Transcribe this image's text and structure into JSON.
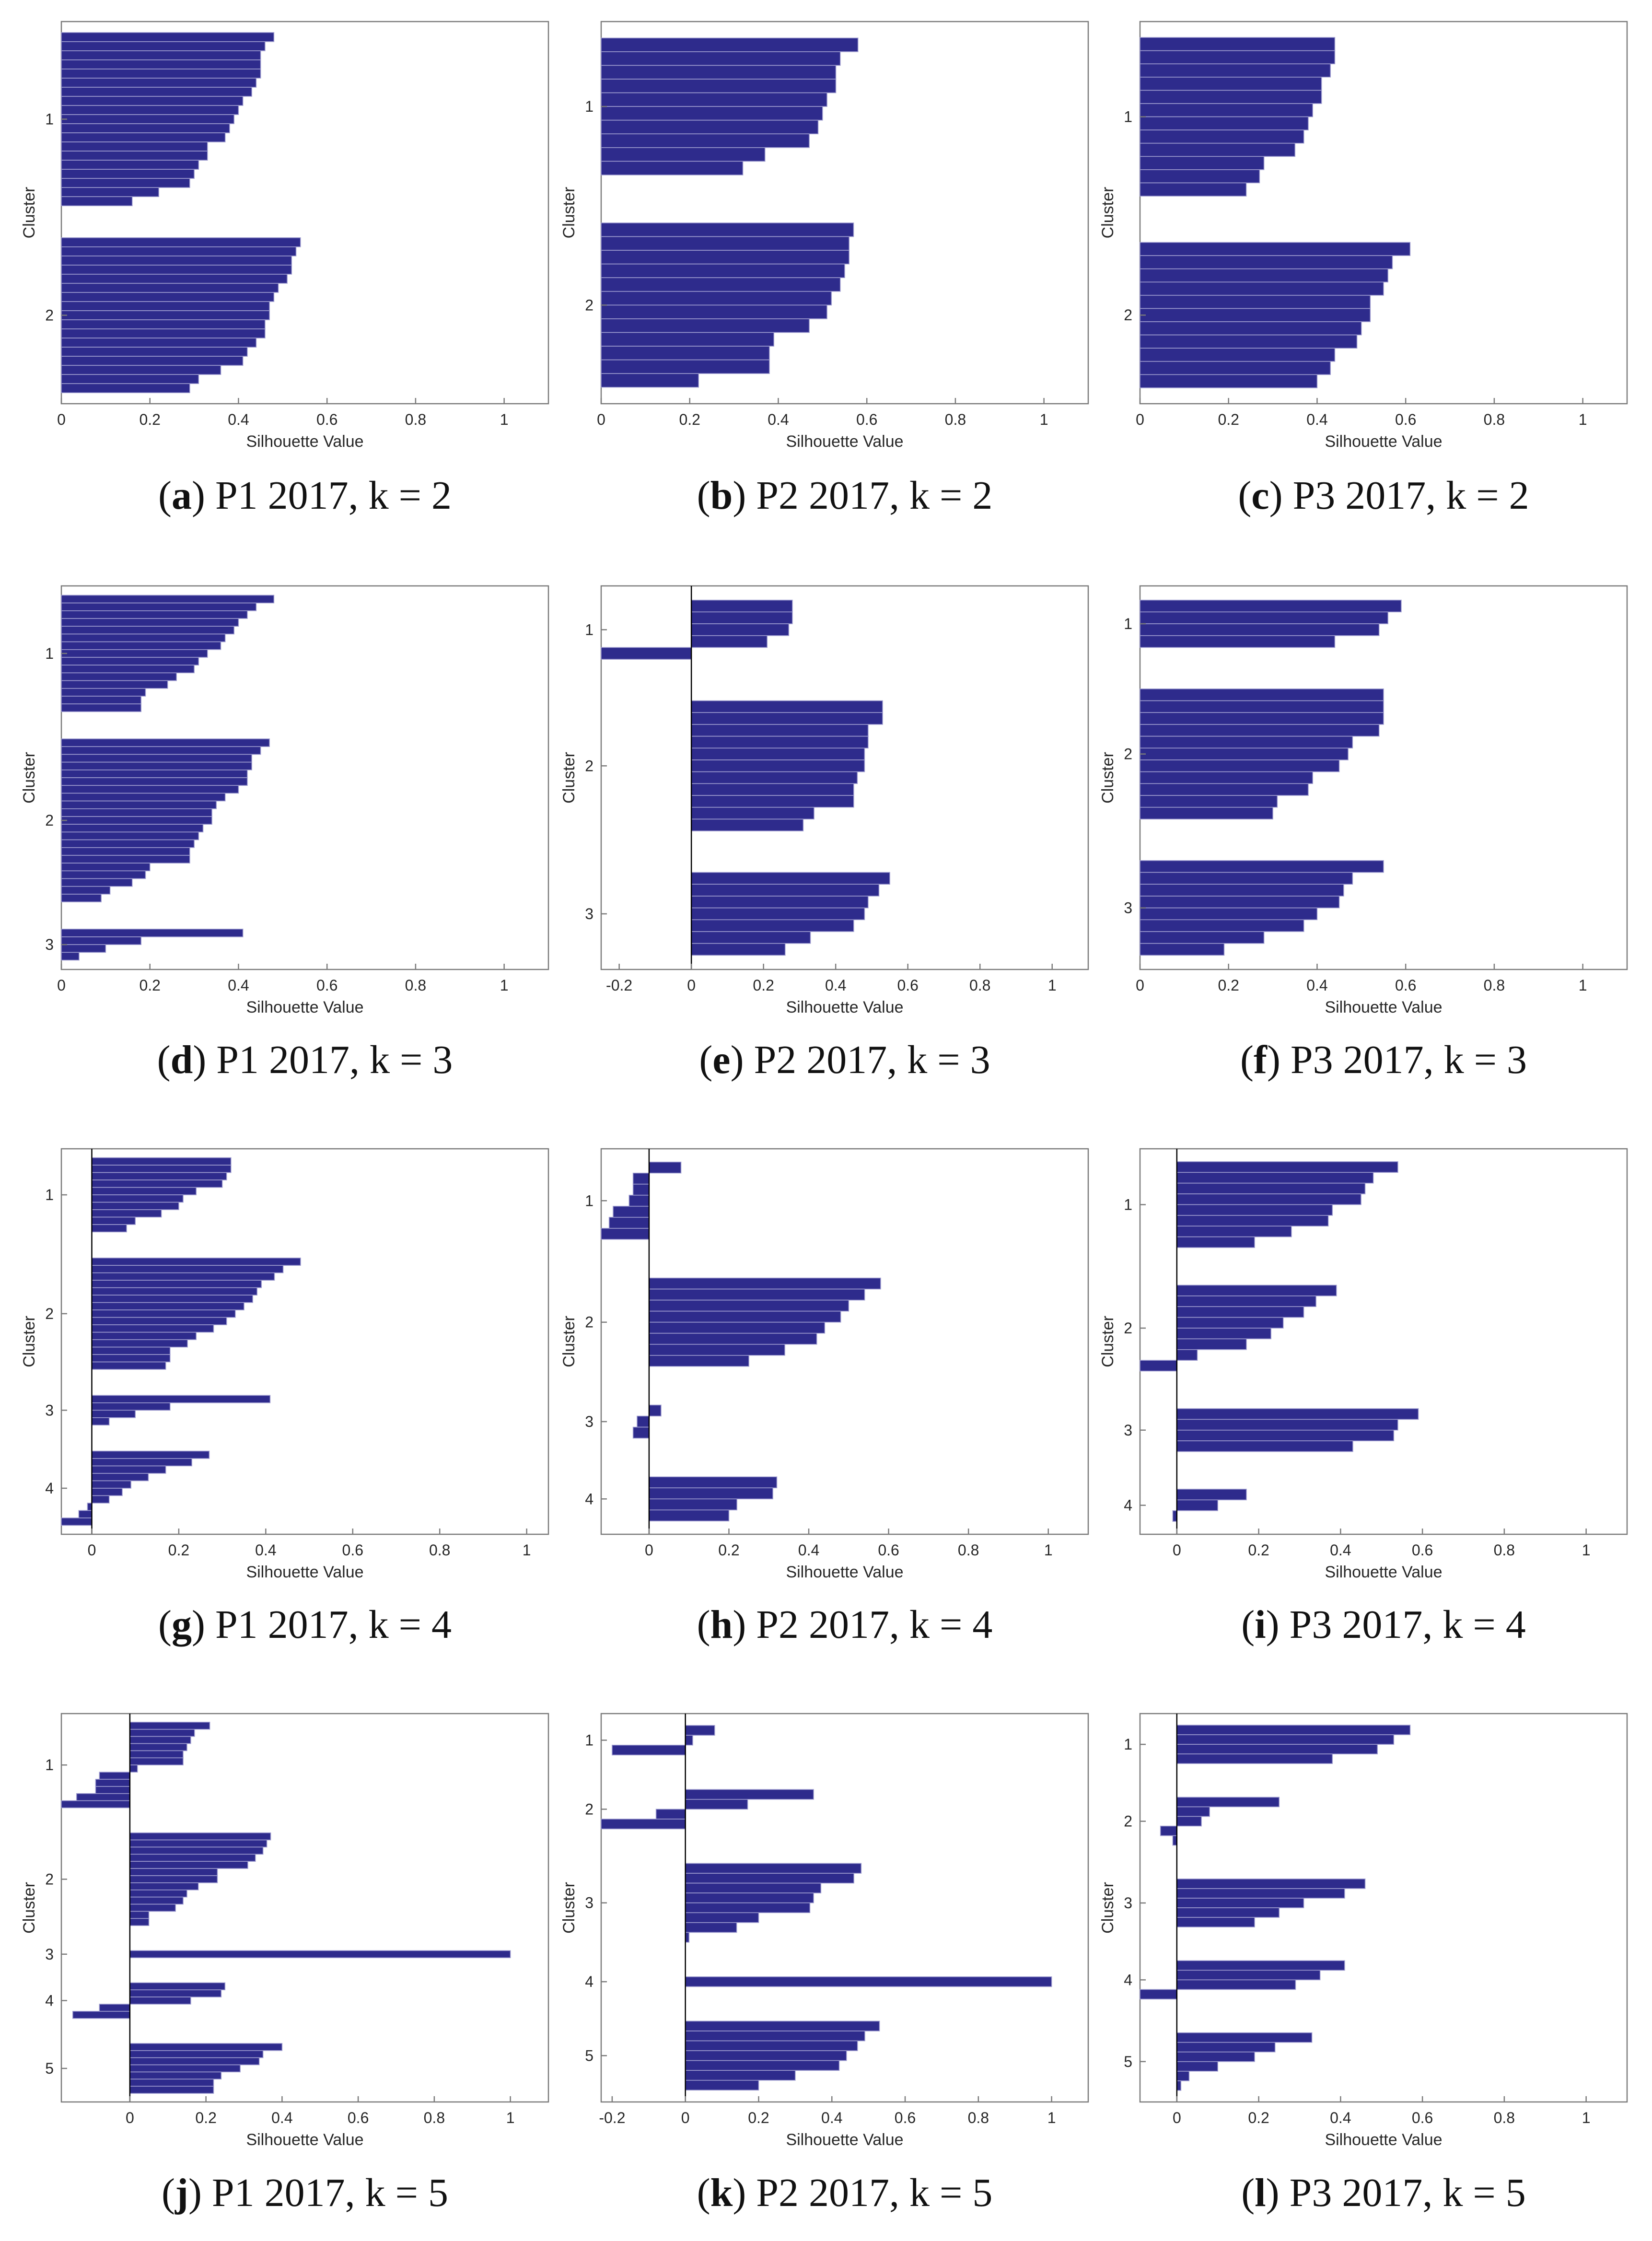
{
  "colors": {
    "bar": "#2e2b8c",
    "axis": "#7a7a7a",
    "tick_text": "#262626",
    "zero_line": "#000000"
  },
  "panel_common": {
    "xlabel": "Silhouette Value",
    "ylabel": "Cluster"
  },
  "chart_data": [
    {
      "id": "a",
      "panel_label": "a",
      "caption": "P1 2017, k = 2",
      "type": "bar",
      "orientation": "horizontal",
      "xlabel": "Silhouette Value",
      "ylabel": "Cluster",
      "xlim": [
        0,
        1.1
      ],
      "xticks": [
        0,
        0.2,
        0.4,
        0.6,
        0.8,
        1
      ],
      "xtick_labels": [
        "0",
        "0.2",
        "0.4",
        "0.6",
        "0.8",
        "1"
      ],
      "clusters": [
        {
          "label": "1",
          "values": [
            0.48,
            0.46,
            0.45,
            0.45,
            0.45,
            0.44,
            0.43,
            0.41,
            0.4,
            0.39,
            0.38,
            0.37,
            0.33,
            0.33,
            0.31,
            0.3,
            0.29,
            0.22,
            0.16
          ]
        },
        {
          "label": "2",
          "values": [
            0.54,
            0.53,
            0.52,
            0.52,
            0.51,
            0.49,
            0.48,
            0.47,
            0.47,
            0.46,
            0.46,
            0.44,
            0.42,
            0.41,
            0.36,
            0.31,
            0.29
          ]
        }
      ]
    },
    {
      "id": "b",
      "panel_label": "b",
      "caption": "P2 2017, k = 2",
      "type": "bar",
      "orientation": "horizontal",
      "xlabel": "Silhouette Value",
      "ylabel": "Cluster",
      "xlim": [
        0,
        1.1
      ],
      "xticks": [
        0,
        0.2,
        0.4,
        0.6,
        0.8,
        1
      ],
      "xtick_labels": [
        "0",
        "0.2",
        "0.4",
        "0.6",
        "0.8",
        "1"
      ],
      "clusters": [
        {
          "label": "1",
          "values": [
            0.58,
            0.54,
            0.53,
            0.53,
            0.51,
            0.5,
            0.49,
            0.47,
            0.37,
            0.32
          ]
        },
        {
          "label": "2",
          "values": [
            0.57,
            0.56,
            0.56,
            0.55,
            0.54,
            0.52,
            0.51,
            0.47,
            0.39,
            0.38,
            0.38,
            0.22
          ]
        }
      ]
    },
    {
      "id": "c",
      "panel_label": "c",
      "caption": "P3 2017, k = 2",
      "type": "bar",
      "orientation": "horizontal",
      "xlabel": "Silhouette Value",
      "ylabel": "Cluster",
      "xlim": [
        0,
        1.1
      ],
      "xticks": [
        0,
        0.2,
        0.4,
        0.6,
        0.8,
        1
      ],
      "xtick_labels": [
        "0",
        "0.2",
        "0.4",
        "0.6",
        "0.8",
        "1"
      ],
      "clusters": [
        {
          "label": "1",
          "values": [
            0.44,
            0.44,
            0.43,
            0.41,
            0.41,
            0.39,
            0.38,
            0.37,
            0.35,
            0.28,
            0.27,
            0.24
          ]
        },
        {
          "label": "2",
          "values": [
            0.61,
            0.57,
            0.56,
            0.55,
            0.52,
            0.52,
            0.5,
            0.49,
            0.44,
            0.43,
            0.4
          ]
        }
      ]
    },
    {
      "id": "d",
      "panel_label": "d",
      "caption": "P1 2017, k = 3",
      "type": "bar",
      "orientation": "horizontal",
      "xlabel": "Silhouette Value",
      "ylabel": "Cluster",
      "xlim": [
        0,
        1.1
      ],
      "xticks": [
        0,
        0.2,
        0.4,
        0.6,
        0.8,
        1
      ],
      "xtick_labels": [
        "0",
        "0.2",
        "0.4",
        "0.6",
        "0.8",
        "1"
      ],
      "clusters": [
        {
          "label": "1",
          "values": [
            0.48,
            0.44,
            0.42,
            0.4,
            0.39,
            0.37,
            0.36,
            0.33,
            0.31,
            0.3,
            0.26,
            0.24,
            0.19,
            0.18,
            0.18
          ]
        },
        {
          "label": "2",
          "values": [
            0.47,
            0.45,
            0.43,
            0.43,
            0.42,
            0.42,
            0.4,
            0.37,
            0.35,
            0.34,
            0.34,
            0.32,
            0.31,
            0.3,
            0.29,
            0.29,
            0.2,
            0.19,
            0.16,
            0.11,
            0.09
          ]
        },
        {
          "label": "3",
          "values": [
            0.41,
            0.18,
            0.1,
            0.04
          ]
        }
      ]
    },
    {
      "id": "e",
      "panel_label": "e",
      "caption": "P2 2017, k = 3",
      "type": "bar",
      "orientation": "horizontal",
      "xlabel": "Silhouette Value",
      "ylabel": "Cluster",
      "xlim": [
        -0.25,
        1.1
      ],
      "xticks": [
        -0.2,
        0,
        0.2,
        0.4,
        0.6,
        0.8,
        1
      ],
      "xtick_labels": [
        "-0.2",
        "0",
        "0.2",
        "0.4",
        "0.6",
        "0.8",
        "1"
      ],
      "clusters": [
        {
          "label": "1",
          "values": [
            0.28,
            0.28,
            0.27,
            0.21,
            -0.25
          ]
        },
        {
          "label": "2",
          "values": [
            0.53,
            0.53,
            0.49,
            0.49,
            0.48,
            0.48,
            0.46,
            0.45,
            0.45,
            0.34,
            0.31
          ]
        },
        {
          "label": "3",
          "values": [
            0.55,
            0.52,
            0.49,
            0.48,
            0.45,
            0.33,
            0.26
          ]
        }
      ]
    },
    {
      "id": "f",
      "panel_label": "f",
      "caption": "P3 2017, k = 3",
      "type": "bar",
      "orientation": "horizontal",
      "xlabel": "Silhouette Value",
      "ylabel": "Cluster",
      "xlim": [
        0,
        1.1
      ],
      "xticks": [
        0,
        0.2,
        0.4,
        0.6,
        0.8,
        1
      ],
      "xtick_labels": [
        "0",
        "0.2",
        "0.4",
        "0.6",
        "0.8",
        "1"
      ],
      "clusters": [
        {
          "label": "1",
          "values": [
            0.59,
            0.56,
            0.54,
            0.44
          ]
        },
        {
          "label": "2",
          "values": [
            0.55,
            0.55,
            0.55,
            0.54,
            0.48,
            0.47,
            0.45,
            0.39,
            0.38,
            0.31,
            0.3
          ]
        },
        {
          "label": "3",
          "values": [
            0.55,
            0.48,
            0.46,
            0.45,
            0.4,
            0.37,
            0.28,
            0.19
          ]
        }
      ]
    },
    {
      "id": "g",
      "panel_label": "g",
      "caption": "P1 2017, k = 4",
      "type": "bar",
      "orientation": "horizontal",
      "xlabel": "Silhouette Value",
      "ylabel": "Cluster",
      "xlim": [
        -0.07,
        1.05
      ],
      "xticks": [
        0,
        0.2,
        0.4,
        0.6,
        0.8,
        1
      ],
      "xtick_labels": [
        "0",
        "0.2",
        "0.4",
        "0.6",
        "0.8",
        "1"
      ],
      "clusters": [
        {
          "label": "1",
          "values": [
            0.32,
            0.32,
            0.31,
            0.3,
            0.24,
            0.21,
            0.2,
            0.16,
            0.1,
            0.08
          ]
        },
        {
          "label": "2",
          "values": [
            0.48,
            0.44,
            0.42,
            0.39,
            0.38,
            0.37,
            0.35,
            0.33,
            0.31,
            0.28,
            0.24,
            0.22,
            0.18,
            0.18,
            0.17
          ]
        },
        {
          "label": "3",
          "values": [
            0.41,
            0.18,
            0.1,
            0.04
          ]
        },
        {
          "label": "4",
          "values": [
            0.27,
            0.23,
            0.17,
            0.13,
            0.09,
            0.07,
            0.04,
            -0.01,
            -0.03,
            -0.07
          ]
        }
      ]
    },
    {
      "id": "h",
      "panel_label": "h",
      "caption": "P2 2017, k = 4",
      "type": "bar",
      "orientation": "horizontal",
      "xlabel": "Silhouette Value",
      "ylabel": "Cluster",
      "xlim": [
        -0.12,
        1.1
      ],
      "xticks": [
        0,
        0.2,
        0.4,
        0.6,
        0.8,
        1
      ],
      "xtick_labels": [
        "0",
        "0.2",
        "0.4",
        "0.6",
        "0.8",
        "1"
      ],
      "clusters": [
        {
          "label": "1",
          "values": [
            0.08,
            -0.04,
            -0.04,
            -0.05,
            -0.09,
            -0.1,
            -0.12
          ]
        },
        {
          "label": "2",
          "values": [
            0.58,
            0.54,
            0.5,
            0.48,
            0.44,
            0.42,
            0.34,
            0.25
          ]
        },
        {
          "label": "3",
          "values": [
            0.03,
            -0.03,
            -0.04
          ]
        },
        {
          "label": "4",
          "values": [
            0.32,
            0.31,
            0.22,
            0.2
          ]
        }
      ]
    },
    {
      "id": "i",
      "panel_label": "i",
      "caption": "P3 2017, k = 4",
      "type": "bar",
      "orientation": "horizontal",
      "xlabel": "Silhouette Value",
      "ylabel": "Cluster",
      "xlim": [
        -0.09,
        1.1
      ],
      "xticks": [
        0,
        0.2,
        0.4,
        0.6,
        0.8,
        1
      ],
      "xtick_labels": [
        "0",
        "0.2",
        "0.4",
        "0.6",
        "0.8",
        "1"
      ],
      "clusters": [
        {
          "label": "1",
          "values": [
            0.54,
            0.48,
            0.46,
            0.45,
            0.38,
            0.37,
            0.28,
            0.19
          ]
        },
        {
          "label": "2",
          "values": [
            0.39,
            0.34,
            0.31,
            0.26,
            0.23,
            0.17,
            0.05,
            -0.09
          ]
        },
        {
          "label": "3",
          "values": [
            0.59,
            0.54,
            0.53,
            0.43
          ]
        },
        {
          "label": "4",
          "values": [
            0.17,
            0.1,
            -0.01
          ]
        }
      ]
    },
    {
      "id": "j",
      "panel_label": "j",
      "caption": "P1 2017, k = 5",
      "type": "bar",
      "orientation": "horizontal",
      "xlabel": "Silhouette Value",
      "ylabel": "Cluster",
      "xlim": [
        -0.18,
        1.1
      ],
      "xticks": [
        0,
        0.2,
        0.4,
        0.6,
        0.8,
        1
      ],
      "xtick_labels": [
        "0",
        "0.2",
        "0.4",
        "0.6",
        "0.8",
        "1"
      ],
      "clusters": [
        {
          "label": "1",
          "values": [
            0.21,
            0.17,
            0.16,
            0.15,
            0.14,
            0.14,
            0.02,
            -0.08,
            -0.09,
            -0.09,
            -0.14,
            -0.18
          ]
        },
        {
          "label": "2",
          "values": [
            0.37,
            0.36,
            0.35,
            0.33,
            0.31,
            0.23,
            0.23,
            0.18,
            0.15,
            0.14,
            0.12,
            0.05,
            0.05
          ]
        },
        {
          "label": "3",
          "values": [
            1.0
          ]
        },
        {
          "label": "4",
          "values": [
            0.25,
            0.24,
            0.16,
            -0.08,
            -0.15
          ]
        },
        {
          "label": "5",
          "values": [
            0.4,
            0.35,
            0.34,
            0.29,
            0.24,
            0.22,
            0.22
          ]
        }
      ]
    },
    {
      "id": "k",
      "panel_label": "k",
      "caption": "P2 2017, k = 5",
      "type": "bar",
      "orientation": "horizontal",
      "xlabel": "Silhouette Value",
      "ylabel": "Cluster",
      "xlim": [
        -0.23,
        1.1
      ],
      "xticks": [
        -0.2,
        0,
        0.2,
        0.4,
        0.6,
        0.8,
        1
      ],
      "xtick_labels": [
        "-0.2",
        "0",
        "0.2",
        "0.4",
        "0.6",
        "0.8",
        "1"
      ],
      "clusters": [
        {
          "label": "1",
          "values": [
            0.08,
            0.02,
            -0.2
          ]
        },
        {
          "label": "2",
          "values": [
            0.35,
            0.17,
            -0.08,
            -0.23
          ]
        },
        {
          "label": "3",
          "values": [
            0.48,
            0.46,
            0.37,
            0.35,
            0.34,
            0.2,
            0.14,
            0.01
          ]
        },
        {
          "label": "4",
          "values": [
            1.0
          ]
        },
        {
          "label": "5",
          "values": [
            0.53,
            0.49,
            0.47,
            0.44,
            0.42,
            0.3,
            0.2
          ]
        }
      ]
    },
    {
      "id": "l",
      "panel_label": "l",
      "caption": "P3 2017, k = 5",
      "type": "bar",
      "orientation": "horizontal",
      "xlabel": "Silhouette Value",
      "ylabel": "Cluster",
      "xlim": [
        -0.09,
        1.1
      ],
      "xticks": [
        0,
        0.2,
        0.4,
        0.6,
        0.8,
        1
      ],
      "xtick_labels": [
        "0",
        "0.2",
        "0.4",
        "0.6",
        "0.8",
        "1"
      ],
      "clusters": [
        {
          "label": "1",
          "values": [
            0.57,
            0.53,
            0.49,
            0.38
          ]
        },
        {
          "label": "2",
          "values": [
            0.25,
            0.08,
            0.06,
            -0.04,
            -0.01
          ]
        },
        {
          "label": "3",
          "values": [
            0.46,
            0.41,
            0.31,
            0.25,
            0.19
          ]
        },
        {
          "label": "4",
          "values": [
            0.41,
            0.35,
            0.29,
            -0.09
          ]
        },
        {
          "label": "5",
          "values": [
            0.33,
            0.24,
            0.19,
            0.1,
            0.03,
            0.01
          ]
        }
      ]
    }
  ]
}
